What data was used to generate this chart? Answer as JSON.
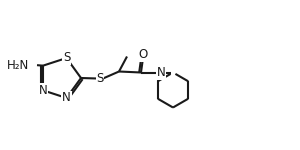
{
  "bg_color": "#ffffff",
  "bond_color": "#1a1a1a",
  "line_width": 1.5,
  "font_size": 8.5,
  "label_color": "#1a1a1a",
  "figsize": [
    3.0,
    1.5
  ],
  "dpi": 100,
  "xlim": [
    0.0,
    3.0
  ],
  "ylim": [
    0.0,
    1.5
  ]
}
